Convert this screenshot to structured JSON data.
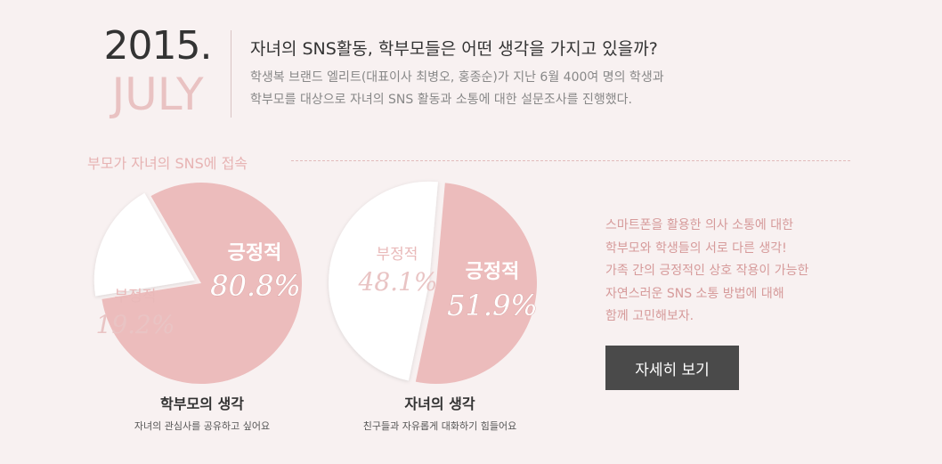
{
  "header": {
    "year": "2015.",
    "month": "JULY",
    "headline": "자녀의 SNS활동, 학부모들은 어떤 생각을 가지고 있을까?",
    "intro_lines": [
      "학생복 브랜드 엘리트(대표이사 최병오, 홍종순)가 지난 6월 400여 명의 학생과",
      "학부모를 대상으로 자녀의 SNS 활동과 소통에 대한 설문조사를 진행했다."
    ]
  },
  "section": {
    "title": "부모가 자녀의 SNS에 접속"
  },
  "chart_data": [
    {
      "type": "pie",
      "title": "학부모의 생각",
      "subtitle": "자녀의 관심사를 공유하고 싶어요",
      "slices": [
        {
          "label": "긍정적",
          "value": 80.8,
          "value_label": "80.8%"
        },
        {
          "label": "부정적",
          "value": 19.2,
          "value_label": "19.2%"
        }
      ],
      "colors": [
        "#ecbcbc",
        "#ffffff"
      ],
      "exploded": "부정적"
    },
    {
      "type": "pie",
      "title": "자녀의 생각",
      "subtitle": "친구들과 자유롭게 대화하기 힘들어요",
      "slices": [
        {
          "label": "긍정적",
          "value": 51.9,
          "value_label": "51.9%"
        },
        {
          "label": "부정적",
          "value": 48.1,
          "value_label": "48.1%"
        }
      ],
      "colors": [
        "#ecbcbc",
        "#ffffff"
      ],
      "exploded": "부정적"
    }
  ],
  "side": {
    "lines": [
      "스마트폰을 활용한 의사 소통에 대한",
      "학부모와 학생들의 서로 다른 생각!",
      "가족 간의 긍정적인 상호 작용이 가능한",
      "자연스러운 SNS 소통 방법에 대해",
      "함께 고민해보자."
    ],
    "button_label": "자세히 보기"
  },
  "colors": {
    "background": "#f8f1f1",
    "accent_pink": "#ecbcbc",
    "text_pink": "#d69a9a",
    "button": "#4a4a4a"
  }
}
